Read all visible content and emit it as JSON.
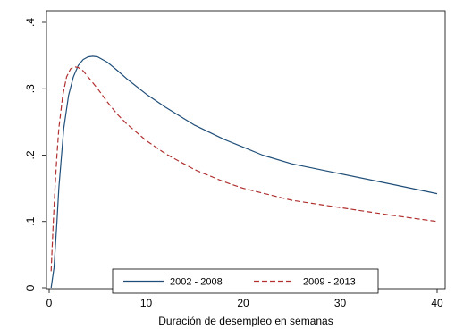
{
  "chart_data": {
    "type": "line",
    "xlabel": "Duración de desempleo en semanas",
    "ylabel": "",
    "xlim": [
      0,
      41
    ],
    "ylim": [
      0,
      0.4
    ],
    "x_ticks": [
      0,
      10,
      20,
      30,
      40
    ],
    "x_tick_labels": [
      "0",
      "10",
      "20",
      "30",
      "40"
    ],
    "y_ticks": [
      0,
      0.1,
      0.2,
      0.3,
      0.4
    ],
    "y_tick_labels": [
      "0",
      ".1",
      ".2",
      ".3",
      ".4"
    ],
    "grid": false,
    "legend_position": "bottom-center",
    "series": [
      {
        "name": "2002 - 2008",
        "color": "#1f4e79",
        "style": "solid",
        "points": [
          [
            0.2,
            0.0
          ],
          [
            0.5,
            0.03
          ],
          [
            0.8,
            0.1
          ],
          [
            1.0,
            0.15
          ],
          [
            1.5,
            0.24
          ],
          [
            2.0,
            0.29
          ],
          [
            2.5,
            0.318
          ],
          [
            3.0,
            0.335
          ],
          [
            3.5,
            0.344
          ],
          [
            4.0,
            0.348
          ],
          [
            4.5,
            0.349
          ],
          [
            5.0,
            0.348
          ],
          [
            6.0,
            0.34
          ],
          [
            7.0,
            0.328
          ],
          [
            8.0,
            0.315
          ],
          [
            10.0,
            0.292
          ],
          [
            12.0,
            0.272
          ],
          [
            15.0,
            0.245
          ],
          [
            18.0,
            0.224
          ],
          [
            20.0,
            0.212
          ],
          [
            22.0,
            0.2
          ],
          [
            25.0,
            0.187
          ],
          [
            30.0,
            0.172
          ],
          [
            35.0,
            0.157
          ],
          [
            40.0,
            0.142
          ]
        ]
      },
      {
        "name": "2009 - 2013",
        "color": "#b03030",
        "style": "dashed",
        "points": [
          [
            0.2,
            0.025
          ],
          [
            0.4,
            0.09
          ],
          [
            0.6,
            0.15
          ],
          [
            0.8,
            0.2
          ],
          [
            1.0,
            0.24
          ],
          [
            1.4,
            0.29
          ],
          [
            1.8,
            0.318
          ],
          [
            2.2,
            0.33
          ],
          [
            2.6,
            0.333
          ],
          [
            3.0,
            0.332
          ],
          [
            3.5,
            0.327
          ],
          [
            4.0,
            0.318
          ],
          [
            5.0,
            0.3
          ],
          [
            6.0,
            0.28
          ],
          [
            7.0,
            0.262
          ],
          [
            8.0,
            0.247
          ],
          [
            10.0,
            0.222
          ],
          [
            12.0,
            0.202
          ],
          [
            15.0,
            0.178
          ],
          [
            18.0,
            0.16
          ],
          [
            20.0,
            0.15
          ],
          [
            25.0,
            0.132
          ],
          [
            30.0,
            0.121
          ],
          [
            35.0,
            0.11
          ],
          [
            40.0,
            0.1
          ]
        ]
      }
    ]
  }
}
